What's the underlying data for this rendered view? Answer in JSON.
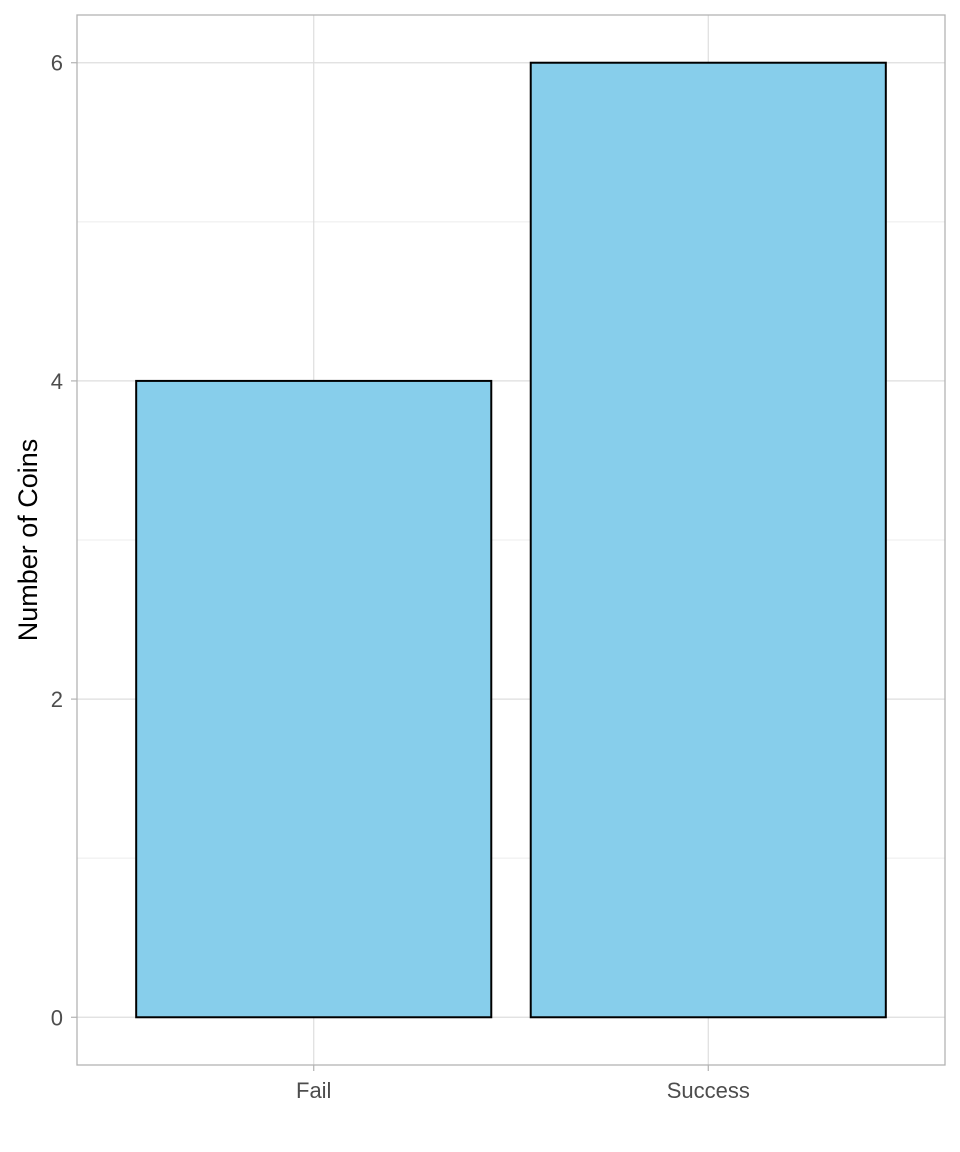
{
  "chart_data": {
    "type": "bar",
    "categories": [
      "Fail",
      "Success"
    ],
    "values": [
      4,
      6
    ],
    "title": "",
    "xlabel": "",
    "ylabel": "Number of Coins",
    "ylim": [
      -0.3,
      6.3
    ],
    "yticks": [
      0,
      2,
      4,
      6
    ],
    "y_minor_gridlines": [
      1,
      3,
      5
    ],
    "grid": true,
    "legend": "none",
    "colors": {
      "bar_fill": "#87ceeb",
      "bar_outline": "#000000",
      "panel_border": "#b3b3b3",
      "grid_major": "#dedede",
      "grid_minor": "#ececec",
      "tick_text": "#4d4d4d",
      "axis_title": "#000000"
    }
  }
}
